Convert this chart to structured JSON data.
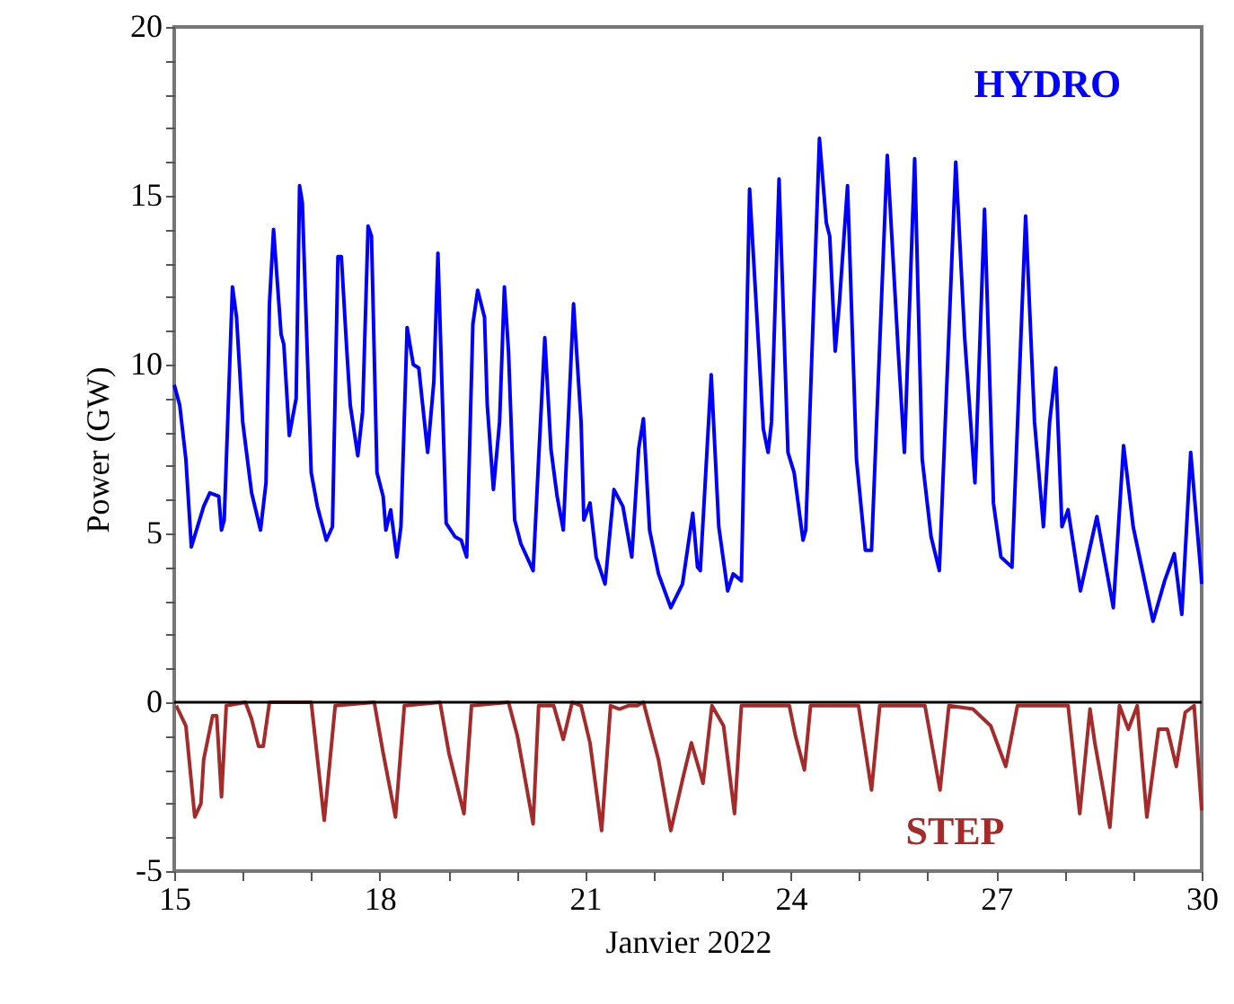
{
  "chart_data": {
    "type": "line",
    "xlabel": "Janvier 2022",
    "ylabel": "Power (GW)",
    "xlim": [
      15,
      30
    ],
    "ylim": [
      -5,
      20
    ],
    "xticks": [
      15,
      {
        "value": 16,
        "label": null
      },
      {
        "value": 17,
        "label": null
      },
      18,
      {
        "value": 19,
        "label": null
      },
      {
        "value": 20,
        "label": null
      },
      21,
      {
        "value": 22,
        "label": null
      },
      {
        "value": 23,
        "label": null
      },
      24,
      {
        "value": 25,
        "label": null
      },
      {
        "value": 26,
        "label": null
      },
      27,
      {
        "value": 28,
        "label": null
      },
      {
        "value": 29,
        "label": null
      },
      30
    ],
    "yticks": [
      -5,
      {
        "value": -4,
        "label": null
      },
      {
        "value": -3,
        "label": null
      },
      {
        "value": -2,
        "label": null
      },
      {
        "value": -1,
        "label": null
      },
      0,
      {
        "value": 1,
        "label": null
      },
      {
        "value": 2,
        "label": null
      },
      {
        "value": 3,
        "label": null
      },
      {
        "value": 4,
        "label": null
      },
      5,
      {
        "value": 6,
        "label": null
      },
      {
        "value": 7,
        "label": null
      },
      {
        "value": 8,
        "label": null
      },
      {
        "value": 9,
        "label": null
      },
      10,
      {
        "value": 11,
        "label": null
      },
      {
        "value": 12,
        "label": null
      },
      {
        "value": 13,
        "label": null
      },
      {
        "value": 14,
        "label": null
      },
      15,
      {
        "value": 16,
        "label": null
      },
      {
        "value": 17,
        "label": null
      },
      {
        "value": 18,
        "label": null
      },
      {
        "value": 19,
        "label": null
      },
      20
    ],
    "grid": false,
    "marker": "none",
    "line_style": "solid",
    "ref_lines": [
      {
        "axis": "y",
        "value": 0,
        "color": "#000000"
      }
    ],
    "series": [
      {
        "name": "HYDRO",
        "color": "#0000ff",
        "x": [
          15.0,
          15.08,
          15.17,
          15.25,
          15.43,
          15.52,
          15.65,
          15.69,
          15.73,
          15.85,
          15.91,
          16.0,
          16.08,
          16.13,
          16.26,
          16.34,
          16.39,
          16.45,
          16.56,
          16.6,
          16.68,
          16.78,
          16.83,
          16.87,
          17.0,
          17.09,
          17.22,
          17.31,
          17.39,
          17.44,
          17.52,
          17.57,
          17.68,
          17.75,
          17.83,
          17.88,
          17.96,
          18.05,
          18.09,
          18.16,
          18.25,
          18.31,
          18.4,
          18.49,
          18.57,
          18.7,
          18.79,
          18.85,
          18.97,
          19.1,
          19.19,
          19.27,
          19.36,
          19.43,
          19.53,
          19.57,
          19.66,
          19.75,
          19.82,
          19.88,
          19.97,
          20.06,
          20.24,
          20.32,
          20.41,
          20.5,
          20.59,
          20.68,
          20.83,
          20.94,
          20.98,
          21.07,
          21.16,
          21.29,
          21.42,
          21.55,
          21.68,
          21.78,
          21.85,
          21.94,
          22.07,
          22.25,
          22.42,
          22.57,
          22.64,
          22.68,
          22.84,
          22.95,
          23.08,
          23.16,
          23.28,
          23.4,
          23.51,
          23.6,
          23.67,
          23.72,
          23.83,
          23.96,
          24.05,
          24.18,
          24.22,
          24.42,
          24.52,
          24.57,
          24.65,
          24.71,
          24.83,
          24.96,
          25.09,
          25.18,
          25.41,
          25.57,
          25.66,
          25.81,
          25.92,
          26.05,
          26.17,
          26.41,
          26.54,
          26.69,
          26.83,
          26.96,
          27.07,
          27.23,
          27.43,
          27.56,
          27.69,
          27.78,
          27.87,
          27.96,
          28.05,
          28.23,
          28.47,
          28.71,
          28.86,
          29.0,
          29.29,
          29.46,
          29.6,
          29.71,
          29.84,
          29.99,
          30.0
        ],
        "values": [
          9.4,
          8.8,
          7.2,
          4.6,
          5.8,
          6.2,
          6.1,
          5.1,
          5.4,
          12.3,
          11.4,
          8.3,
          7.0,
          6.2,
          5.1,
          6.5,
          11.8,
          14.0,
          10.9,
          10.6,
          7.9,
          9.0,
          15.3,
          14.8,
          6.8,
          5.8,
          4.8,
          5.2,
          13.2,
          13.2,
          10.4,
          8.8,
          7.3,
          8.6,
          14.1,
          13.8,
          6.8,
          6.1,
          5.1,
          5.7,
          4.3,
          5.2,
          11.1,
          10.0,
          9.9,
          7.4,
          9.5,
          13.3,
          5.3,
          4.9,
          4.8,
          4.3,
          11.2,
          12.2,
          11.4,
          8.8,
          6.3,
          8.3,
          12.3,
          10.4,
          5.4,
          4.7,
          3.9,
          7.2,
          10.8,
          7.5,
          6.1,
          5.1,
          11.8,
          8.3,
          5.4,
          5.9,
          4.3,
          3.5,
          6.3,
          5.8,
          4.3,
          7.5,
          8.4,
          5.1,
          3.8,
          2.8,
          3.5,
          5.6,
          4.0,
          3.9,
          9.7,
          5.2,
          3.3,
          3.8,
          3.6,
          15.2,
          11.3,
          8.1,
          7.4,
          8.3,
          15.5,
          7.4,
          6.8,
          4.8,
          5.1,
          16.7,
          14.2,
          13.8,
          10.4,
          11.8,
          15.3,
          7.2,
          4.5,
          4.5,
          16.2,
          10.4,
          7.4,
          16.1,
          7.2,
          4.9,
          3.9,
          16.0,
          10.8,
          6.5,
          14.6,
          5.9,
          4.3,
          4.0,
          14.4,
          8.3,
          5.2,
          8.3,
          9.9,
          5.2,
          5.7,
          3.3,
          5.5,
          2.8,
          7.6,
          5.2,
          2.4,
          3.6,
          4.4,
          2.6,
          7.4,
          3.8,
          3.5
        ]
      },
      {
        "name": "STEP",
        "color": "#a52a2a",
        "x": [
          15.03,
          15.17,
          15.3,
          15.39,
          15.43,
          15.56,
          15.62,
          15.69,
          15.76,
          16.04,
          16.13,
          16.23,
          16.3,
          16.39,
          17.0,
          17.19,
          17.35,
          17.92,
          18.05,
          18.23,
          18.36,
          18.88,
          19.01,
          19.23,
          19.34,
          19.88,
          20.01,
          20.24,
          20.32,
          20.54,
          20.68,
          20.81,
          20.94,
          21.07,
          21.24,
          21.37,
          21.5,
          21.63,
          21.76,
          21.85,
          22.07,
          22.25,
          22.42,
          22.55,
          22.68,
          22.72,
          22.85,
          23.02,
          23.18,
          23.28,
          23.98,
          24.07,
          24.2,
          24.29,
          24.99,
          25.18,
          25.3,
          25.96,
          26.18,
          26.31,
          26.66,
          26.92,
          27.14,
          27.31,
          28.05,
          28.22,
          28.37,
          28.44,
          28.66,
          28.8,
          28.93,
          29.06,
          29.2,
          29.37,
          29.5,
          29.63,
          29.76,
          29.89,
          30.0
        ],
        "values": [
          -0.1,
          -0.7,
          -3.4,
          -3.0,
          -1.7,
          -0.4,
          -0.4,
          -2.8,
          -0.1,
          0,
          -0.5,
          -1.3,
          -1.3,
          0,
          0,
          -3.5,
          -0.1,
          0,
          -1.5,
          -3.4,
          -0.1,
          0,
          -1.5,
          -3.3,
          -0.1,
          0,
          -1.0,
          -3.6,
          -0.1,
          -0.1,
          -1.1,
          0,
          -0.1,
          -1.2,
          -3.8,
          -0.1,
          -0.2,
          -0.1,
          -0.1,
          0,
          -1.7,
          -3.8,
          -2.3,
          -1.2,
          -2.1,
          -2.4,
          -0.1,
          -0.7,
          -3.3,
          -0.1,
          -0.1,
          -1.0,
          -2.0,
          -0.1,
          -0.1,
          -2.6,
          -0.1,
          -0.1,
          -2.6,
          -0.1,
          -0.2,
          -0.7,
          -1.9,
          -0.1,
          -0.1,
          -3.3,
          -0.2,
          -1.2,
          -3.7,
          -0.1,
          -0.8,
          -0.1,
          -3.4,
          -0.8,
          -0.8,
          -1.9,
          -0.3,
          -0.1,
          -3.2
        ]
      }
    ]
  }
}
